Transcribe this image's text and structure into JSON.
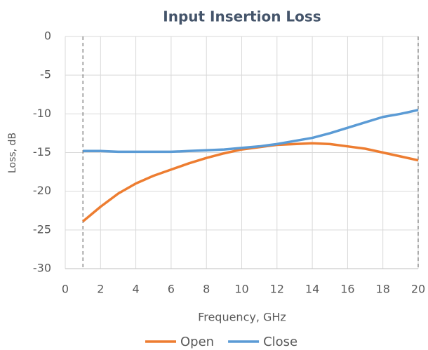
{
  "chart_data": {
    "type": "line",
    "title": "Input Insertion Loss",
    "x_label": "Frequency, GHz",
    "y_label": "Loss, dB",
    "x": [
      1,
      2,
      3,
      4,
      5,
      6,
      7,
      8,
      9,
      10,
      11,
      12,
      13,
      14,
      15,
      16,
      17,
      18,
      19,
      20
    ],
    "series": [
      {
        "name": "Open",
        "color": "#ed7d31",
        "values": [
          -23.9,
          -22.0,
          -20.3,
          -19.0,
          -18.0,
          -17.2,
          -16.4,
          -15.7,
          -15.1,
          -14.6,
          -14.3,
          -14.0,
          -13.9,
          -13.8,
          -13.9,
          -14.2,
          -14.5,
          -15.0,
          -15.5,
          -16.0
        ]
      },
      {
        "name": "Close",
        "color": "#5b9bd5",
        "values": [
          -14.8,
          -14.8,
          -14.9,
          -14.9,
          -14.9,
          -14.9,
          -14.8,
          -14.7,
          -14.6,
          -14.4,
          -14.2,
          -13.9,
          -13.5,
          -13.1,
          -12.5,
          -11.8,
          -11.1,
          -10.4,
          -10.0,
          -9.5
        ]
      }
    ],
    "xlim": [
      0,
      20
    ],
    "xticks": [
      0,
      2,
      4,
      6,
      8,
      10,
      12,
      14,
      16,
      18,
      20
    ],
    "ylim": [
      -30,
      0
    ],
    "yticks": [
      0,
      -5,
      -10,
      -15,
      -20,
      -25,
      -30
    ],
    "vlines": [
      1,
      20
    ],
    "grid": true,
    "legend": "bottom"
  }
}
